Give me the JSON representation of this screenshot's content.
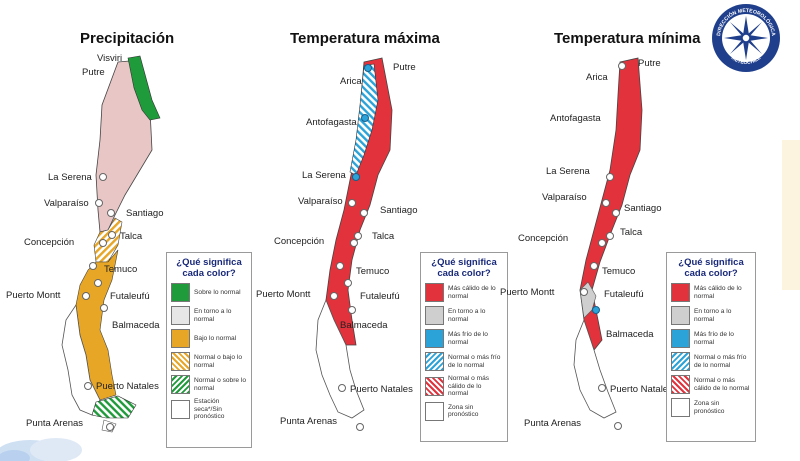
{
  "maps": [
    {
      "title": "Precipitación",
      "cities": [
        "Visviri",
        "Putre",
        "La Serena",
        "Valparaíso",
        "Santiago",
        "Concepción",
        "Talca",
        "Temuco",
        "Puerto Montt",
        "Futaleufú",
        "Balmaceda",
        "Puerto Natales",
        "Punta Arenas"
      ],
      "legend": {
        "title": "¿Qué significa cada color?",
        "items": [
          {
            "label": "Sobre lo normal",
            "color": "#1f9b3b"
          },
          {
            "label": "En torno a lo normal",
            "color": "#e6e6e6"
          },
          {
            "label": "Bajo lo normal",
            "color": "#e7a626"
          },
          {
            "label": "Normal o bajo lo normal",
            "color": "#e7a626"
          },
          {
            "label": "Normal o sobre lo normal",
            "color": "#1f9b3b"
          },
          {
            "label": "Estación seca*/Sin pronóstico",
            "color": "#ffffff"
          }
        ]
      }
    },
    {
      "title": "Temperatura máxima",
      "cities": [
        "Putre",
        "Arica",
        "Antofagasta",
        "La Serena",
        "Valparaíso",
        "Santiago",
        "Concepción",
        "Talca",
        "Temuco",
        "Puerto Montt",
        "Futaleufú",
        "Balmaceda",
        "Puerto Natales",
        "Punta Arenas"
      ],
      "legend": {
        "title": "¿Qué significa cada color?",
        "items": [
          {
            "label": "Más cálido de lo normal",
            "color": "#e2323c"
          },
          {
            "label": "En torno a lo normal",
            "color": "#cfcfcf"
          },
          {
            "label": "Más frío de lo normal",
            "color": "#2ba3d9"
          },
          {
            "label": "Normal o más frío de lo normal",
            "color": "#2ba3d9"
          },
          {
            "label": "Normal o más cálido de lo normal",
            "color": "#e2323c"
          },
          {
            "label": "Zona sin pronóstico",
            "color": "#ffffff"
          }
        ]
      }
    },
    {
      "title": "Temperatura mínima",
      "cities": [
        "Putre",
        "Arica",
        "Antofagasta",
        "La Serena",
        "Valparaíso",
        "Santiago",
        "Concepción",
        "Talca",
        "Temuco",
        "Puerto Montt",
        "Futaleufú",
        "Balmaceda",
        "Puerto Natales",
        "Punta Arenas"
      ],
      "legend": {
        "title": "¿Qué significa cada color?",
        "items": [
          {
            "label": "Más cálido de lo normal",
            "color": "#e2323c"
          },
          {
            "label": "En torno a lo normal",
            "color": "#cfcfcf"
          },
          {
            "label": "Más frío de lo normal",
            "color": "#2ba3d9"
          },
          {
            "label": "Normal o más frío de lo normal",
            "color": "#2ba3d9"
          },
          {
            "label": "Normal o más cálido de lo normal",
            "color": "#e2323c"
          },
          {
            "label": "Zona sin pronóstico",
            "color": "#ffffff"
          }
        ]
      }
    }
  ],
  "logo": {
    "text_top": "DIRECCIÓN METEOROLÓGICA",
    "text_bottom": "METEOCHILE"
  }
}
